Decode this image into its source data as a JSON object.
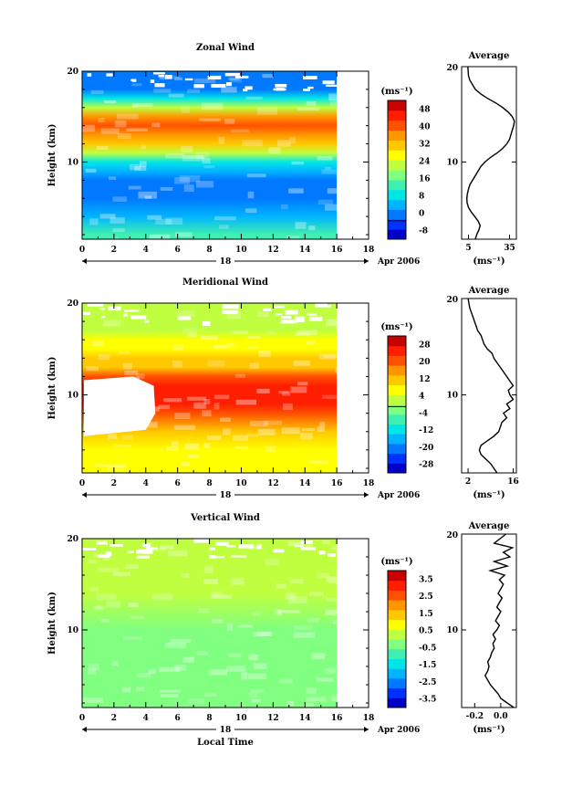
{
  "chart_data": [
    {
      "type": "heatmap",
      "title": "Zonal Wind",
      "xlabel": "",
      "ylabel": "Height (km)",
      "x_ticks": [
        0,
        2,
        4,
        6,
        8,
        10,
        12,
        14,
        16,
        18
      ],
      "y_ticks": [
        10,
        20
      ],
      "xlim": [
        0,
        18
      ],
      "ylim": [
        1.5,
        20
      ],
      "data_xlim": [
        0,
        16
      ],
      "date_label": "18",
      "month_label": "Apr 2006",
      "colorbar": {
        "unit": "(ms⁻¹)",
        "ticks": [
          "48",
          "40",
          "32",
          "24",
          "16",
          "8",
          "0",
          "-8"
        ],
        "range": [
          -8,
          52
        ],
        "zero_line": 0
      },
      "profile_key": [
        [
          2,
          14
        ],
        [
          4,
          7
        ],
        [
          6,
          2
        ],
        [
          8,
          1
        ],
        [
          9,
          6
        ],
        [
          10,
          13
        ],
        [
          11,
          22
        ],
        [
          12,
          32
        ],
        [
          13,
          38
        ],
        [
          14,
          40
        ],
        [
          15,
          36
        ],
        [
          16,
          22
        ],
        [
          17,
          10
        ],
        [
          18,
          4
        ],
        [
          19,
          2
        ]
      ],
      "average": {
        "title": "Average",
        "x_ticks": [
          "5",
          "35"
        ],
        "x_tick_values": [
          5,
          35
        ],
        "xlim": [
          0,
          40
        ],
        "xlabel": "(ms⁻¹)",
        "heights": [
          1.5,
          2,
          2.5,
          3,
          3.5,
          4,
          4.5,
          5,
          5.5,
          6,
          6.5,
          7,
          7.5,
          8,
          8.5,
          9,
          9.5,
          10,
          10.5,
          11,
          11.5,
          12,
          12.5,
          13,
          13.5,
          14,
          14.5,
          15,
          15.5,
          16,
          16.5,
          17,
          17.5,
          18,
          18.5,
          19,
          19.5,
          20
        ],
        "values": [
          10,
          11,
          12.5,
          13.5,
          12,
          9.5,
          7,
          5,
          4,
          3.8,
          4.2,
          5,
          6,
          8,
          10,
          12,
          14,
          17,
          21,
          26,
          30,
          33,
          35,
          36,
          37,
          38,
          38.5,
          37,
          34,
          30,
          25,
          19,
          14,
          10,
          8,
          6,
          5,
          4.5
        ]
      }
    },
    {
      "type": "heatmap",
      "title": "Meridional Wind",
      "xlabel": "",
      "ylabel": "Height (km)",
      "x_ticks": [
        0,
        2,
        4,
        6,
        8,
        10,
        12,
        14,
        16,
        18
      ],
      "y_ticks": [
        10,
        20
      ],
      "xlim": [
        0,
        18
      ],
      "ylim": [
        1.5,
        20
      ],
      "data_xlim": [
        0,
        16
      ],
      "date_label": "18",
      "month_label": "Apr 2006",
      "colorbar": {
        "unit": "(ms⁻¹)",
        "ticks": [
          "28",
          "20",
          "12",
          "4",
          "-4",
          "-12",
          "-20",
          "-28"
        ],
        "range": [
          -30,
          32
        ],
        "zero_line": 0
      },
      "profile_key": [
        [
          2,
          6
        ],
        [
          4,
          9
        ],
        [
          6,
          14
        ],
        [
          8,
          20
        ],
        [
          9,
          25
        ],
        [
          10,
          27
        ],
        [
          11,
          25
        ],
        [
          12,
          20
        ],
        [
          13,
          14
        ],
        [
          14,
          10
        ],
        [
          15,
          8
        ],
        [
          16,
          6
        ],
        [
          17,
          5
        ],
        [
          18,
          4
        ],
        [
          19,
          3
        ]
      ],
      "average": {
        "title": "Average",
        "x_ticks": [
          "2",
          "16"
        ],
        "x_tick_values": [
          2,
          16
        ],
        "xlim": [
          0,
          17
        ],
        "xlabel": "(ms⁻¹)",
        "heights": [
          1.5,
          2,
          2.5,
          3,
          3.5,
          4,
          4.5,
          5,
          5.5,
          6,
          6.5,
          7,
          7.5,
          8,
          8.5,
          9,
          9.5,
          10,
          10.5,
          11,
          11.5,
          12,
          12.5,
          13,
          13.5,
          14,
          14.5,
          15,
          15.5,
          16,
          16.5,
          17,
          17.5,
          18,
          18.5,
          19,
          19.5,
          20
        ],
        "values": [
          11,
          10,
          9,
          7.5,
          6,
          5.5,
          6,
          8,
          10,
          11.5,
          12,
          12.5,
          14,
          13,
          15,
          14,
          16,
          15,
          14.5,
          16,
          15,
          14,
          13,
          12,
          11,
          10,
          9.5,
          8,
          7,
          6.5,
          6,
          5,
          4.5,
          4,
          3.5,
          3,
          2.5,
          2
        ]
      }
    },
    {
      "type": "heatmap",
      "title": "Vertical Wind",
      "xlabel": "Local Time",
      "ylabel": "Height (km)",
      "x_ticks": [
        0,
        2,
        4,
        6,
        8,
        10,
        12,
        14,
        16,
        18
      ],
      "y_ticks": [
        10,
        20
      ],
      "xlim": [
        0,
        18
      ],
      "ylim": [
        1.5,
        20
      ],
      "data_xlim": [
        0,
        16
      ],
      "date_label": "18",
      "month_label": "Apr 2006",
      "colorbar": {
        "unit": "(ms⁻¹)",
        "ticks": [
          "3.5",
          "2.5",
          "1.5",
          "0.5",
          "-0.5",
          "-1.5",
          "-2.5",
          "-3.5"
        ],
        "range": [
          -4,
          4
        ]
      },
      "profile_key": [
        [
          2,
          -0.3
        ],
        [
          6,
          -0.2
        ],
        [
          10,
          -0.1
        ],
        [
          14,
          0
        ],
        [
          18,
          0.1
        ]
      ],
      "average": {
        "title": "Average",
        "x_ticks": [
          "-0.2",
          "0.0"
        ],
        "x_tick_values": [
          -0.2,
          0.0
        ],
        "xlim": [
          -0.3,
          0.12
        ],
        "xlabel": "(ms⁻¹)",
        "heights": [
          1.5,
          2,
          2.5,
          3,
          3.5,
          4,
          4.5,
          5,
          5.5,
          6,
          6.5,
          7,
          7.5,
          8,
          8.5,
          9,
          9.5,
          10,
          10.5,
          11,
          11.5,
          12,
          12.5,
          13,
          13.5,
          14,
          14.5,
          15,
          15.5,
          16,
          16.5,
          17,
          17.5,
          18,
          18.5,
          19,
          19.5,
          20
        ],
        "values": [
          0.1,
          0.05,
          0.0,
          -0.02,
          -0.05,
          -0.08,
          -0.1,
          -0.12,
          -0.1,
          -0.09,
          -0.1,
          -0.08,
          -0.07,
          -0.05,
          -0.06,
          -0.04,
          -0.06,
          -0.03,
          -0.01,
          -0.04,
          -0.02,
          0.0,
          -0.03,
          -0.01,
          0.01,
          -0.02,
          0.0,
          0.02,
          -0.01,
          0.03,
          -0.08,
          0.05,
          -0.05,
          0.07,
          0.02,
          0.09,
          -0.05,
          0.04
        ]
      }
    }
  ]
}
